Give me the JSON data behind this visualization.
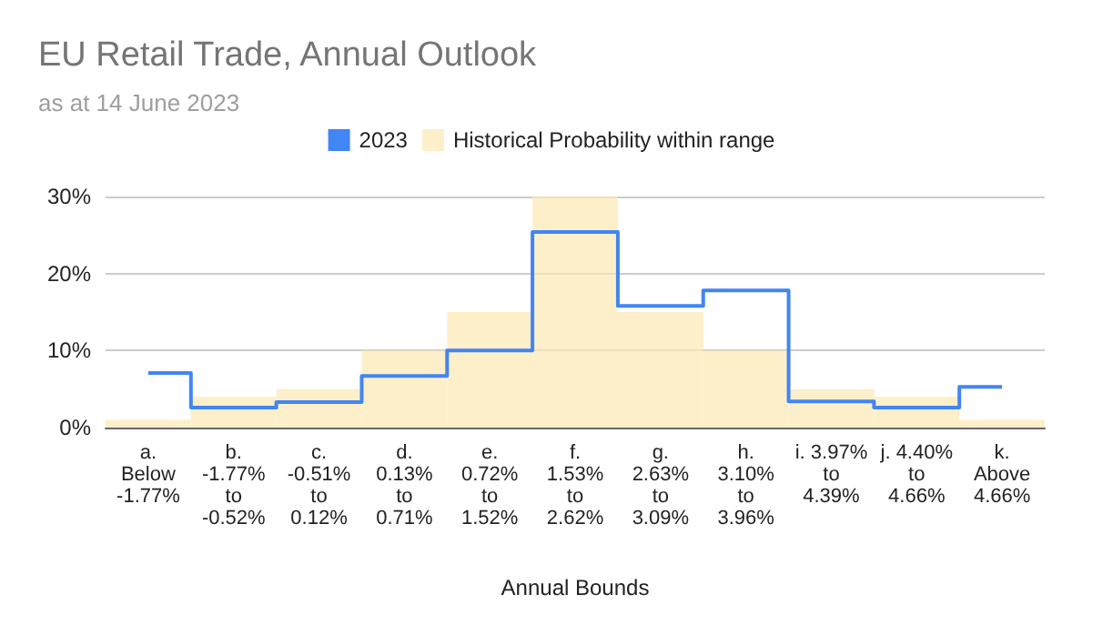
{
  "chart_data": {
    "type": "step",
    "title": "EU Retail Trade, Annual Outlook",
    "subtitle": "as at 14 June 2023",
    "xlabel": "Annual Bounds",
    "categories": [
      "a.\nBelow\n-1.77%",
      "b.\n-1.77%\nto\n-0.52%",
      "c.\n-0.51%\nto\n0.12%",
      "d.\n0.13%\nto\n0.71%",
      "e.\n0.72%\nto\n1.52%",
      "f.\n1.53%\nto\n2.62%",
      "g.\n2.63%\nto\n3.09%",
      "h.\n3.10%\nto\n3.96%",
      "i. 3.97%\nto\n4.39%",
      "j. 4.40%\nto\n4.66%",
      "k.\nAbove\n4.66%"
    ],
    "series": [
      {
        "name": "2023",
        "color": "#4285f4",
        "values": [
          7.1,
          2.6,
          3.3,
          6.7,
          10,
          25.4,
          15.8,
          17.8,
          3.4,
          2.6,
          5.3
        ]
      },
      {
        "name": "Historical Probability within range",
        "type": "bar",
        "color": "#fce8b2",
        "values": [
          1,
          4,
          5,
          10,
          15,
          30,
          15,
          10,
          5,
          4,
          1
        ]
      }
    ],
    "ylim": [
      0,
      30
    ],
    "yticks": [
      {
        "value": 0,
        "label": "0%"
      },
      {
        "value": 10,
        "label": "10%"
      },
      {
        "value": 20,
        "label": "20%"
      },
      {
        "value": 30,
        "label": "30%"
      }
    ],
    "grid": "y",
    "legend": "top",
    "marker": "none"
  }
}
